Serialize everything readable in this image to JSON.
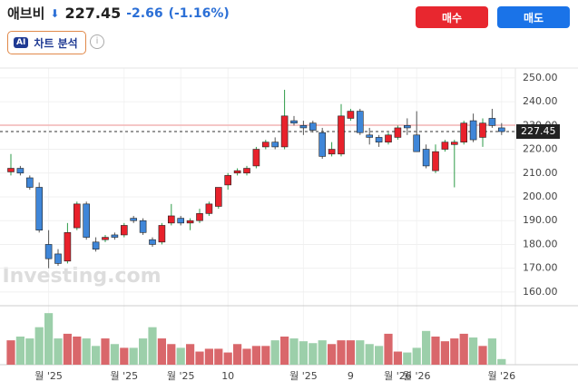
{
  "header": {
    "name": "애브비",
    "price": "227.45",
    "change": "-2.66",
    "change_pct": "(-1.16%)",
    "buy": "매수",
    "sell": "매도",
    "ai_badge": "AI",
    "ai_button": "차트 분석"
  },
  "chart_data": {
    "type": "candlestick",
    "watermark": "Investing.com",
    "open": [
      210.5,
      212,
      208,
      204,
      180,
      176,
      173,
      187,
      197,
      181,
      182,
      184,
      184,
      191,
      190,
      182,
      181,
      189,
      191,
      189,
      190,
      193,
      196,
      205,
      210,
      210,
      213,
      221,
      223,
      221,
      232,
      230,
      231,
      227,
      218,
      218,
      233,
      236,
      226,
      225,
      223,
      225,
      230,
      226,
      220,
      211,
      220,
      222,
      223,
      232,
      225,
      233,
      229
    ],
    "high": [
      218,
      213,
      209,
      206,
      186,
      178,
      189,
      198,
      198,
      183,
      184,
      185,
      189,
      192,
      191,
      183,
      189,
      197,
      192,
      191,
      195,
      198,
      204,
      210,
      212,
      213,
      221,
      224,
      225,
      245,
      234,
      232,
      232,
      229,
      223,
      239,
      237,
      237,
      229,
      226,
      227,
      230,
      233,
      236,
      222,
      222,
      224,
      224,
      232,
      235,
      233,
      237,
      231
    ],
    "low": [
      209,
      209,
      203,
      185,
      170,
      171,
      172,
      186,
      182,
      177,
      181,
      182,
      183,
      189,
      184,
      179,
      180,
      188,
      188,
      186,
      189,
      192,
      195,
      203,
      209,
      209,
      212,
      220,
      220,
      220,
      230,
      226,
      227,
      216,
      217,
      217,
      232,
      226,
      222,
      221,
      222,
      224,
      226,
      219,
      212,
      210,
      219,
      204,
      222,
      223,
      221,
      229,
      226
    ],
    "close": [
      212,
      210,
      204,
      186,
      174,
      172,
      185,
      197,
      183,
      178,
      183,
      183,
      188,
      190,
      185,
      180,
      188,
      192,
      189,
      190,
      193,
      197,
      204,
      209,
      211,
      212,
      220,
      223,
      221,
      234,
      231,
      229,
      228,
      217,
      220,
      234,
      236,
      227,
      225,
      223,
      226,
      229,
      229,
      219,
      213,
      219,
      223,
      223,
      231,
      224,
      231,
      230,
      227.45
    ],
    "volume": [
      26,
      30,
      28,
      40,
      55,
      28,
      33,
      30,
      28,
      20,
      28,
      22,
      18,
      18,
      28,
      40,
      28,
      22,
      18,
      22,
      14,
      17,
      17,
      13,
      22,
      17,
      20,
      20,
      26,
      30,
      28,
      25,
      23,
      26,
      22,
      26,
      26,
      26,
      22,
      20,
      33,
      14,
      13,
      18,
      36,
      30,
      25,
      28,
      33,
      29,
      20,
      28,
      6
    ],
    "categories": [
      null,
      null,
      null,
      null,
      "월 '25",
      null,
      null,
      null,
      null,
      null,
      null,
      null,
      "월 '25",
      null,
      null,
      null,
      null,
      null,
      "월 '25",
      null,
      null,
      null,
      null,
      "10",
      null,
      null,
      null,
      null,
      null,
      null,
      null,
      "월 '25",
      null,
      null,
      null,
      null,
      "9",
      null,
      null,
      null,
      null,
      "월 '26",
      null,
      "월 '26",
      null,
      null,
      null,
      null,
      null,
      null,
      null,
      null,
      "월 '26"
    ],
    "ylim": [
      155,
      253
    ],
    "vlim": [
      0,
      60
    ],
    "yticks": [
      {
        "value": 160,
        "label": "160.00"
      },
      {
        "value": 170,
        "label": "170.00"
      },
      {
        "value": 180,
        "label": "180.00"
      },
      {
        "value": 190,
        "label": "190.00"
      },
      {
        "value": 200,
        "label": "200.00"
      },
      {
        "value": 210,
        "label": "210.00"
      },
      {
        "value": 220,
        "label": "220.00"
      },
      {
        "value": 230,
        "label": "230.00"
      },
      {
        "value": 240,
        "label": "240.00"
      },
      {
        "value": 250,
        "label": "250.00"
      }
    ],
    "current_price": 227.45,
    "reference_line": 230.11,
    "up_color": "#e8212b",
    "down_color": "#3f86d8",
    "volume_up_color": "#d9676b",
    "volume_down_color": "#9ccfaa",
    "grid": true
  }
}
